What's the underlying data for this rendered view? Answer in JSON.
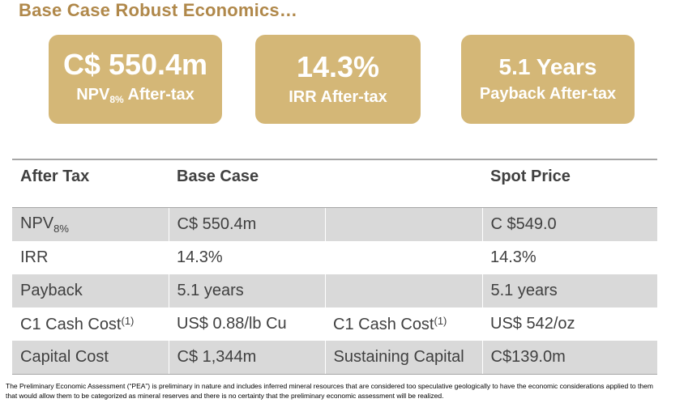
{
  "title": "Base Case Robust Economics…",
  "cards": {
    "npv": {
      "value": "C$ 550.4m",
      "label_prefix": "NPV",
      "label_sub": "8%",
      "label_suffix": " After-tax"
    },
    "irr": {
      "value": "14.3%",
      "label": "IRR After-tax"
    },
    "payback": {
      "value": "5.1 Years",
      "label": "Payback After-tax"
    }
  },
  "colors": {
    "accent": "#d4b777",
    "title": "#b0884a",
    "row_shade": "#d9d9d9",
    "text": "#404040"
  },
  "table": {
    "headers": [
      "After Tax",
      "Base Case",
      "",
      "Spot Price"
    ],
    "rows": [
      {
        "label": "NPV",
        "label_sub": "8%",
        "base": "C$ 550.4m",
        "mid": "",
        "spot": "C $549.0"
      },
      {
        "label": "IRR",
        "base": "14.3%",
        "mid": "",
        "spot": "14.3%"
      },
      {
        "label": "Payback",
        "base": "5.1 years",
        "mid": "",
        "spot": "5.1 years"
      },
      {
        "label": "C1 Cash Cost",
        "label_sup": "(1)",
        "base": "US$ 0.88/lb Cu",
        "mid": "C1 Cash Cost",
        "mid_sup": "(1)",
        "spot": "US$ 542/oz"
      },
      {
        "label": "Capital Cost",
        "base": "C$ 1,344m",
        "mid": "Sustaining Capital",
        "spot": "C$139.0m"
      }
    ]
  },
  "footnote": "The Preliminary Economic Assessment (“PEA”) is preliminary in nature and includes inferred mineral resources that are considered too speculative geologically to have the economic considerations applied to them that would allow them to be categorized as mineral reserves and there is no certainty that the preliminary economic assessment will be realized."
}
